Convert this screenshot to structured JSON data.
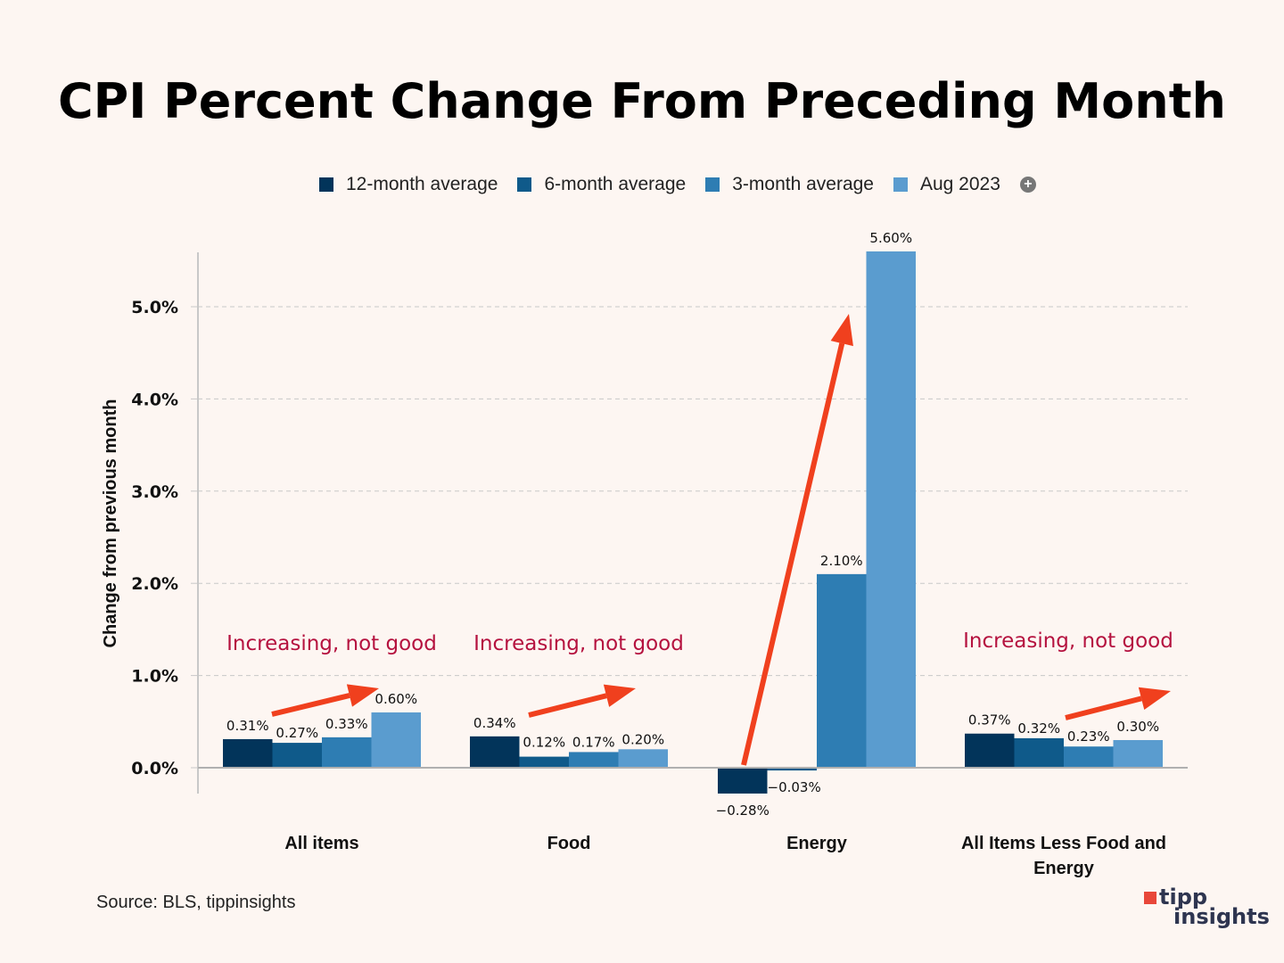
{
  "title": "CPI Percent Change From Preceding Month",
  "source": "Source: BLS, tippinsights",
  "logo": {
    "line1": "tipp",
    "line2": "insights"
  },
  "colors": {
    "background": "#fdf6f2",
    "series": [
      "#02345a",
      "#0f5a8a",
      "#2e7db3",
      "#5a9ccf"
    ],
    "arrow": "#f0401e",
    "annotation": "#b5123f"
  },
  "chart_data": {
    "type": "bar",
    "title": "CPI Percent Change From Preceding Month",
    "xlabel": "",
    "ylabel": "Change from previous month",
    "ylim": [
      -0.3,
      5.6
    ],
    "yticks": [
      0.0,
      1.0,
      2.0,
      3.0,
      4.0,
      5.0
    ],
    "ytick_labels": [
      "0.0%",
      "1.0%",
      "2.0%",
      "3.0%",
      "4.0%",
      "5.0%"
    ],
    "grid": true,
    "legend_position": "top",
    "categories": [
      "All items",
      "Food",
      "Energy",
      "All Items Less Food and Energy"
    ],
    "series": [
      {
        "name": "12-month average",
        "values": [
          0.31,
          0.34,
          -0.28,
          0.37
        ],
        "labels": [
          "0.31%",
          "0.34%",
          "-0.28%",
          "0.37%"
        ]
      },
      {
        "name": "6-month average",
        "values": [
          0.27,
          0.12,
          -0.03,
          0.32
        ],
        "labels": [
          "0.27%",
          "0.12%",
          "-0.03%",
          "0.32%"
        ]
      },
      {
        "name": "3-month average",
        "values": [
          0.33,
          0.17,
          2.1,
          0.23
        ],
        "labels": [
          "0.33%",
          "0.17%",
          "2.10%",
          "0.23%"
        ]
      },
      {
        "name": "Aug 2023",
        "values": [
          0.6,
          0.2,
          5.6,
          0.3
        ],
        "labels": [
          "0.60%",
          "0.20%",
          "5.60%",
          "0.30%"
        ]
      }
    ],
    "annotations": [
      {
        "text": "Increasing, not good",
        "category": "All items"
      },
      {
        "text": "Increasing, not good",
        "category": "Food"
      },
      {
        "text": "Increasing, not good",
        "category": "All Items Less Food and Energy"
      }
    ],
    "category_labels_lines": [
      [
        "All items"
      ],
      [
        "Food"
      ],
      [
        "Energy"
      ],
      [
        "All Items Less Food and",
        "Energy"
      ]
    ]
  }
}
